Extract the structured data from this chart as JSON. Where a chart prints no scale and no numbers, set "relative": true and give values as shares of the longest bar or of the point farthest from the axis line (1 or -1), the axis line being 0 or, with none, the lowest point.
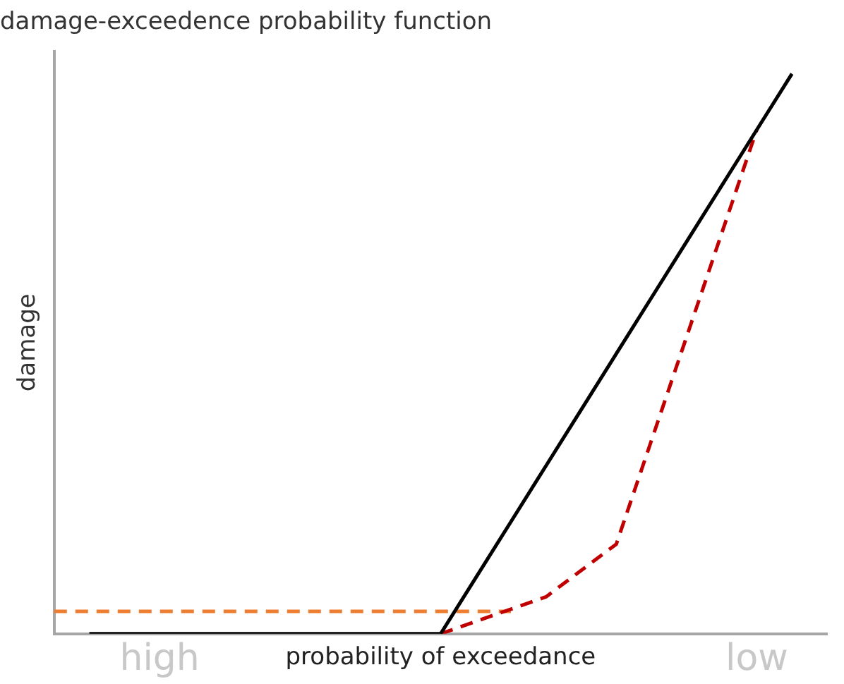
{
  "chart_data": {
    "type": "line",
    "title": "damage-exceedence probability function",
    "xlabel": "probability of exceedance",
    "ylabel": "damage",
    "relative": true,
    "categories": [
      null,
      null,
      null,
      "high",
      null,
      null,
      null,
      null,
      null,
      null,
      null,
      null,
      null,
      null,
      null,
      null,
      null,
      null,
      null,
      null,
      "low",
      null,
      null
    ],
    "tick_labels": "x",
    "grid": false,
    "legend": false,
    "marker": "none",
    "series": [
      {
        "color": "#000000",
        "values": [
          null,
          0,
          0,
          0,
          0,
          0,
          0,
          0,
          0,
          0,
          0,
          0,
          0.1,
          0.2,
          0.3,
          0.4,
          0.5,
          0.6,
          0.7,
          0.8,
          0.9,
          1,
          null
        ],
        "line_style": "solid"
      },
      {
        "color": "#c00000",
        "values": [
          null,
          null,
          null,
          null,
          null,
          null,
          null,
          null,
          null,
          null,
          null,
          0,
          0.022,
          0.044,
          0.066,
          0.113,
          0.16,
          0.345,
          0.53,
          0.715,
          0.9,
          null,
          null
        ],
        "line_style": "dashed"
      },
      {
        "color": "#ed7d31",
        "values": [
          0.04,
          0.04,
          0.04,
          0.04,
          0.04,
          0.04,
          0.04,
          0.04,
          0.04,
          0.04,
          0.04,
          0.04,
          0.04,
          0.04,
          null,
          null,
          null,
          null,
          null,
          null,
          null,
          null,
          null
        ],
        "line_style": "dashed"
      }
    ]
  }
}
